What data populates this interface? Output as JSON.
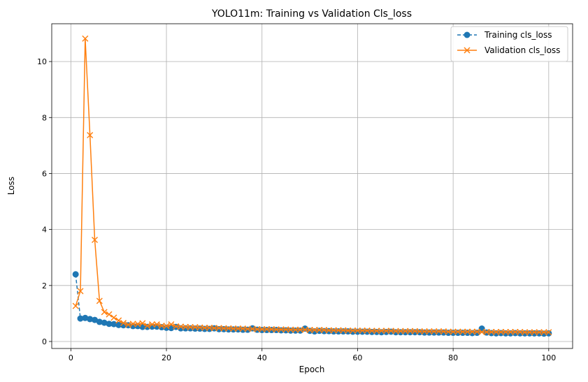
{
  "chart_data": {
    "type": "line",
    "title": "YOLO11m: Training vs Validation Cls_loss",
    "xlabel": "Epoch",
    "ylabel": "Loss",
    "xlim": [
      -4,
      105
    ],
    "ylim": [
      -0.25,
      11.35
    ],
    "xticks": [
      0,
      20,
      40,
      60,
      80,
      100
    ],
    "yticks": [
      0,
      2,
      4,
      6,
      8,
      10
    ],
    "grid": true,
    "legend_position": "top-right",
    "series": [
      {
        "name": "Training cls_loss",
        "color": "#1f77b4",
        "linestyle": "dashed",
        "marker": "circle",
        "x": [
          1,
          2,
          3,
          4,
          5,
          6,
          7,
          8,
          9,
          10,
          11,
          12,
          13,
          14,
          15,
          16,
          17,
          18,
          19,
          20,
          21,
          22,
          23,
          24,
          25,
          26,
          27,
          28,
          29,
          30,
          31,
          32,
          33,
          34,
          35,
          36,
          37,
          38,
          39,
          40,
          41,
          42,
          43,
          44,
          45,
          46,
          47,
          48,
          49,
          50,
          51,
          52,
          53,
          54,
          55,
          56,
          57,
          58,
          59,
          60,
          61,
          62,
          63,
          64,
          65,
          66,
          67,
          68,
          69,
          70,
          71,
          72,
          73,
          74,
          75,
          76,
          77,
          78,
          79,
          80,
          81,
          82,
          83,
          84,
          85,
          86,
          87,
          88,
          89,
          90,
          91,
          92,
          93,
          94,
          95,
          96,
          97,
          98,
          99,
          100
        ],
        "values": [
          2.4,
          0.82,
          0.84,
          0.8,
          0.77,
          0.7,
          0.67,
          0.63,
          0.62,
          0.59,
          0.58,
          0.58,
          0.55,
          0.55,
          0.52,
          0.52,
          0.53,
          0.53,
          0.51,
          0.49,
          0.48,
          0.52,
          0.47,
          0.47,
          0.47,
          0.46,
          0.46,
          0.45,
          0.45,
          0.47,
          0.44,
          0.44,
          0.43,
          0.43,
          0.43,
          0.42,
          0.42,
          0.47,
          0.42,
          0.41,
          0.41,
          0.41,
          0.41,
          0.4,
          0.4,
          0.39,
          0.39,
          0.39,
          0.46,
          0.38,
          0.36,
          0.38,
          0.37,
          0.37,
          0.36,
          0.36,
          0.36,
          0.36,
          0.35,
          0.35,
          0.35,
          0.35,
          0.34,
          0.34,
          0.33,
          0.34,
          0.35,
          0.33,
          0.33,
          0.33,
          0.33,
          0.33,
          0.33,
          0.32,
          0.32,
          0.32,
          0.32,
          0.32,
          0.31,
          0.31,
          0.31,
          0.31,
          0.31,
          0.3,
          0.31,
          0.46,
          0.32,
          0.3,
          0.29,
          0.3,
          0.29,
          0.29,
          0.3,
          0.29,
          0.29,
          0.29,
          0.29,
          0.29,
          0.28,
          0.29
        ]
      },
      {
        "name": "Validation cls_loss",
        "color": "#ff7f0e",
        "linestyle": "solid",
        "marker": "x",
        "x": [
          1,
          2,
          3,
          4,
          5,
          6,
          7,
          8,
          9,
          10,
          11,
          12,
          13,
          14,
          15,
          16,
          17,
          18,
          19,
          20,
          21,
          22,
          23,
          24,
          25,
          26,
          27,
          28,
          29,
          30,
          31,
          32,
          33,
          34,
          35,
          36,
          37,
          38,
          39,
          40,
          41,
          42,
          43,
          44,
          45,
          46,
          47,
          48,
          49,
          50,
          51,
          52,
          53,
          54,
          55,
          56,
          57,
          58,
          59,
          60,
          61,
          62,
          63,
          64,
          65,
          66,
          67,
          68,
          69,
          70,
          71,
          72,
          73,
          74,
          75,
          76,
          77,
          78,
          79,
          80,
          81,
          82,
          83,
          84,
          85,
          86,
          87,
          88,
          89,
          90,
          91,
          92,
          93,
          94,
          95,
          96,
          97,
          98,
          99,
          100
        ],
        "values": [
          1.27,
          1.8,
          10.82,
          7.37,
          3.63,
          1.45,
          1.05,
          0.97,
          0.85,
          0.75,
          0.66,
          0.6,
          0.63,
          0.62,
          0.65,
          0.56,
          0.61,
          0.61,
          0.56,
          0.55,
          0.61,
          0.54,
          0.53,
          0.52,
          0.51,
          0.51,
          0.5,
          0.49,
          0.49,
          0.48,
          0.48,
          0.47,
          0.47,
          0.46,
          0.46,
          0.46,
          0.45,
          0.45,
          0.44,
          0.44,
          0.44,
          0.44,
          0.43,
          0.43,
          0.43,
          0.42,
          0.42,
          0.42,
          0.42,
          0.41,
          0.41,
          0.41,
          0.41,
          0.4,
          0.4,
          0.4,
          0.4,
          0.39,
          0.39,
          0.39,
          0.39,
          0.39,
          0.38,
          0.38,
          0.38,
          0.38,
          0.38,
          0.37,
          0.37,
          0.37,
          0.37,
          0.37,
          0.36,
          0.36,
          0.36,
          0.36,
          0.36,
          0.36,
          0.35,
          0.35,
          0.35,
          0.35,
          0.35,
          0.35,
          0.35,
          0.34,
          0.34,
          0.34,
          0.34,
          0.34,
          0.34,
          0.34,
          0.34,
          0.34,
          0.33,
          0.33,
          0.33,
          0.33,
          0.33,
          0.33
        ]
      }
    ]
  }
}
